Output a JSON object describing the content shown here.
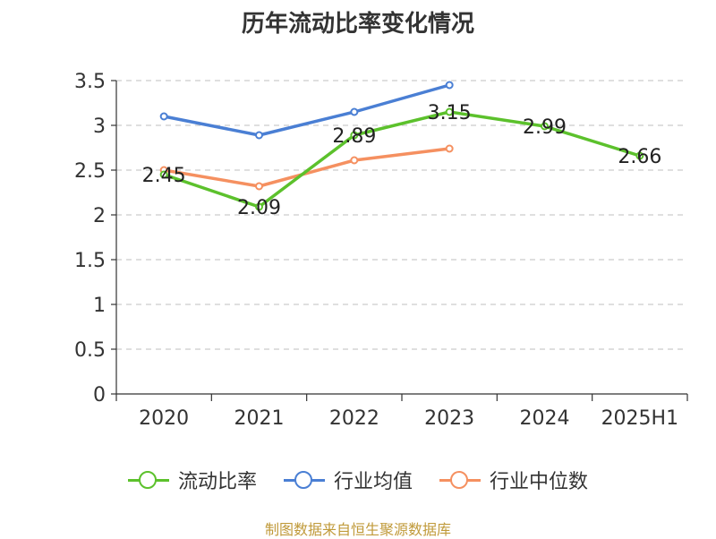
{
  "title": "历年流动比率变化情况",
  "source": "制图数据来自恒生聚源数据库",
  "chart_data": {
    "type": "line",
    "categories": [
      "2020",
      "2021",
      "2022",
      "2023",
      "2024",
      "2025H1"
    ],
    "ylim": [
      0,
      3.5
    ],
    "yticks": [
      "0",
      "0.5",
      "1",
      "1.5",
      "2",
      "2.5",
      "3",
      "3.5"
    ],
    "grid": true,
    "legend_position": "bottom",
    "series": [
      {
        "name": "流动比率",
        "color": "#5cc12c",
        "values": [
          2.45,
          2.09,
          2.89,
          3.15,
          2.99,
          2.66
        ],
        "labels": [
          "2.45",
          "2.09",
          "2.89",
          "3.15",
          "2.99",
          "2.66"
        ]
      },
      {
        "name": "行业均值",
        "color": "#4a7fd4",
        "values": [
          3.1,
          2.89,
          3.15,
          3.45,
          null,
          null
        ]
      },
      {
        "name": "行业中位数",
        "color": "#f59060",
        "values": [
          2.5,
          2.32,
          2.61,
          2.74,
          null,
          null
        ]
      }
    ]
  }
}
